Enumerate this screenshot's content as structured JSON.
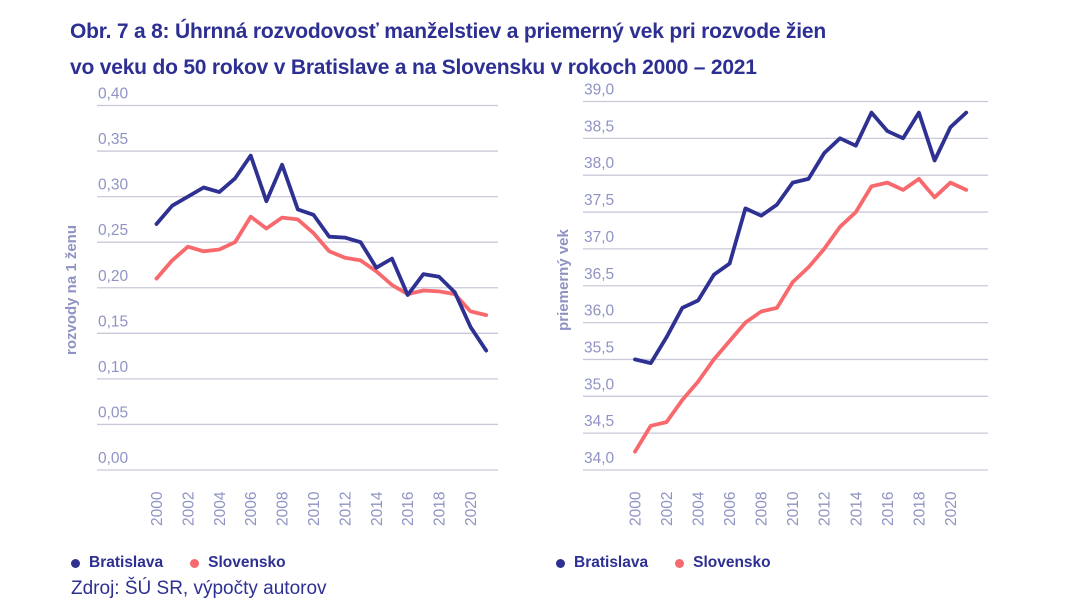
{
  "title": {
    "line1": "Obr. 7 a 8: Úhrnná rozvodovosť manželstiev a priemerný vek pri rozvode žien",
    "line2": "vo veku do 50 rokov v Bratislave a na Slovensku v rokoch 2000 – 2021"
  },
  "source": "Zdroj: ŠÚ SR, výpočty autorov",
  "colors": {
    "bratislava": "#2e3192",
    "slovensko": "#f8696d",
    "text_navy": "#2d3092",
    "tick_label": "#8f93c4",
    "gridline": "#c9c9da"
  },
  "chart_data": [
    {
      "type": "line",
      "ylabel": "rozvody na 1 ženu",
      "ylim": [
        0,
        0.4
      ],
      "ytick_step": 0.05,
      "ytick_labels": [
        "0,40",
        "0,35",
        "0,30",
        "0,25",
        "0,20",
        "0,15",
        "0,10",
        "0,05",
        "0,00"
      ],
      "x": [
        2000,
        2001,
        2002,
        2003,
        2004,
        2005,
        2006,
        2007,
        2008,
        2009,
        2010,
        2011,
        2012,
        2013,
        2014,
        2015,
        2016,
        2017,
        2018,
        2019,
        2020,
        2021
      ],
      "xtick_labels": [
        "2000",
        "2002",
        "2004",
        "2006",
        "2008",
        "2010",
        "2012",
        "2014",
        "2016",
        "2018",
        "2020"
      ],
      "grid": true,
      "legend_position": "bottom-left",
      "series": [
        {
          "name": "Bratislava",
          "color": "#2e3192",
          "values": [
            0.27,
            0.29,
            0.3,
            0.31,
            0.305,
            0.32,
            0.345,
            0.295,
            0.335,
            0.286,
            0.28,
            0.256,
            0.255,
            0.25,
            0.222,
            0.232,
            0.192,
            0.215,
            0.212,
            0.195,
            0.157,
            0.131
          ]
        },
        {
          "name": "Slovensko",
          "color": "#f8696d",
          "values": [
            0.21,
            0.23,
            0.245,
            0.24,
            0.242,
            0.25,
            0.278,
            0.265,
            0.277,
            0.275,
            0.26,
            0.24,
            0.233,
            0.23,
            0.218,
            0.203,
            0.193,
            0.197,
            0.196,
            0.193,
            0.174,
            0.17
          ]
        }
      ]
    },
    {
      "type": "line",
      "ylabel": "priemerný vek",
      "ylim": [
        34.0,
        39.0
      ],
      "ytick_step": 0.5,
      "ytick_labels": [
        "39,0",
        "38,5",
        "38,0",
        "37,5",
        "37,0",
        "36,5",
        "36,0",
        "35,5",
        "35,0",
        "34,5",
        "34,0"
      ],
      "x": [
        2000,
        2001,
        2002,
        2003,
        2004,
        2005,
        2006,
        2007,
        2008,
        2009,
        2010,
        2011,
        2012,
        2013,
        2014,
        2015,
        2016,
        2017,
        2018,
        2019,
        2020,
        2021
      ],
      "xtick_labels": [
        "2000",
        "2002",
        "2004",
        "2006",
        "2008",
        "2010",
        "2012",
        "2014",
        "2016",
        "2018",
        "2020"
      ],
      "grid": true,
      "legend_position": "bottom-left",
      "series": [
        {
          "name": "Bratislava",
          "color": "#2e3192",
          "values": [
            35.5,
            35.45,
            35.8,
            36.2,
            36.3,
            36.65,
            36.8,
            37.55,
            37.45,
            37.6,
            37.9,
            37.95,
            38.3,
            38.5,
            38.4,
            38.85,
            38.6,
            38.5,
            38.85,
            38.2,
            38.65,
            38.85
          ]
        },
        {
          "name": "Slovensko",
          "color": "#f8696d",
          "values": [
            34.25,
            34.6,
            34.65,
            34.95,
            35.2,
            35.5,
            35.75,
            36.0,
            36.15,
            36.2,
            36.55,
            36.75,
            37.0,
            37.3,
            37.5,
            37.85,
            37.9,
            37.8,
            37.95,
            37.7,
            37.9,
            37.8
          ]
        }
      ]
    }
  ]
}
